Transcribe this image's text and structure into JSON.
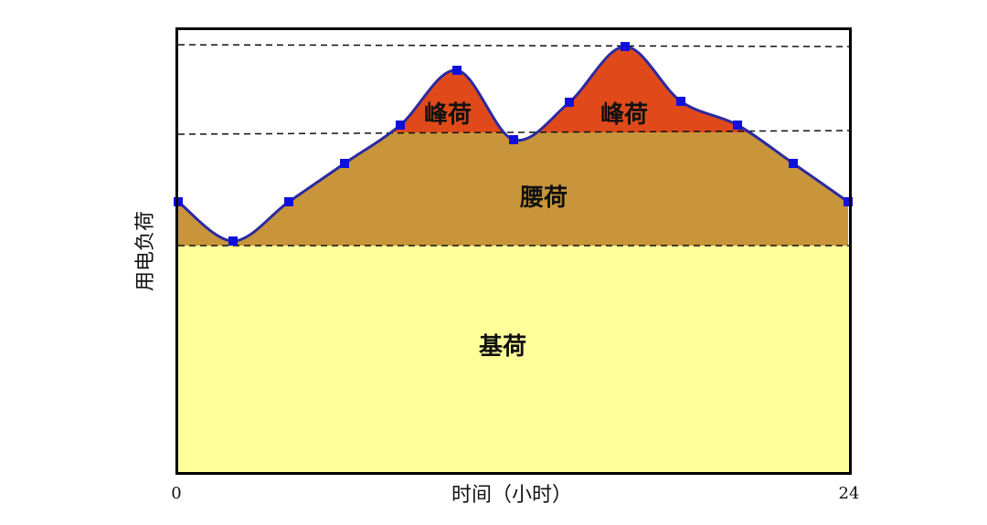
{
  "y_axis_label": "用电负荷",
  "x_axis_label": "时间（小时）",
  "x_start_label": "0",
  "x_end_label": "24",
  "regions": {
    "peak_left": "峰荷",
    "peak_right": "峰荷",
    "waist": "腰荷",
    "base": "基荷"
  }
}
